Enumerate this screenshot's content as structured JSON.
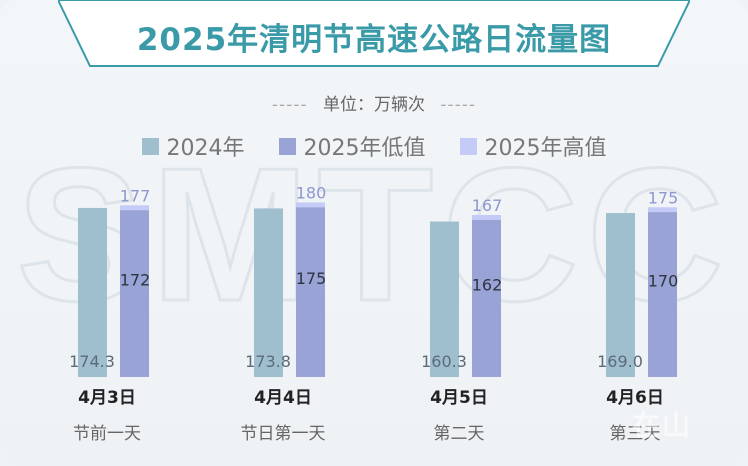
{
  "title": "2025年清明节高速公路日流量图",
  "unit_label": "单位：万辆次",
  "unit_dashes": "-----",
  "watermark": "SMTCC",
  "brand": "在山",
  "colors": {
    "title": "#3a9aa8",
    "s2024": "#9fbfcf",
    "s2025low": "#9aa3d6",
    "s2025high": "#c4cbf6"
  },
  "chart_data": {
    "type": "bar",
    "categories": [
      "4月3日",
      "4月4日",
      "4月5日",
      "4月6日"
    ],
    "subcategories": [
      "节前一天",
      "节日第一天",
      "第二天",
      "第三天"
    ],
    "series": [
      {
        "name": "2024年",
        "values": [
          174.3,
          173.8,
          160.3,
          169.0
        ],
        "labels": [
          "174.3",
          "173.8",
          "160.3",
          "169.0"
        ]
      },
      {
        "name": "2025年低值",
        "values": [
          172,
          175,
          162,
          170
        ],
        "labels": [
          "172",
          "175",
          "162",
          "170"
        ]
      },
      {
        "name": "2025年高值",
        "values": [
          177,
          180,
          167,
          175
        ],
        "labels": [
          "177",
          "180",
          "167",
          "175"
        ]
      }
    ],
    "legend_position": "top",
    "grid": false
  }
}
